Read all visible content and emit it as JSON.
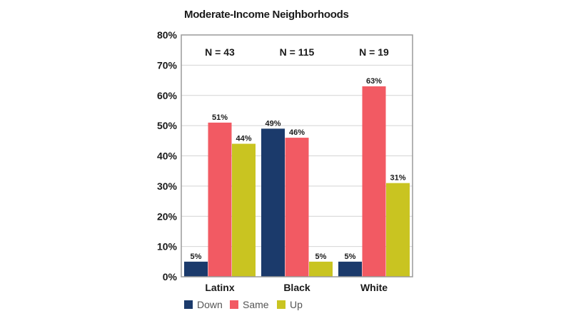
{
  "chart_data": {
    "type": "bar",
    "title": "Moderate-Income Neighborhoods",
    "categories": [
      "Latinx",
      "Black",
      "White"
    ],
    "group_labels": [
      "N = 43",
      "N = 115",
      "N = 19"
    ],
    "series": [
      {
        "name": "Down",
        "values": [
          5,
          49,
          5
        ],
        "labels": [
          "5%",
          "49%",
          "5%"
        ],
        "color": "#1b3a6b"
      },
      {
        "name": "Same",
        "values": [
          51,
          46,
          63
        ],
        "labels": [
          "51%",
          "46%",
          "63%"
        ],
        "color": "#f25a63"
      },
      {
        "name": "Up",
        "values": [
          44,
          5,
          31
        ],
        "labels": [
          "44%",
          "5%",
          "31%"
        ],
        "color": "#c9c421"
      }
    ],
    "ylim": [
      0,
      80
    ],
    "yticks": [
      0,
      10,
      20,
      30,
      40,
      50,
      60,
      70,
      80
    ],
    "ytick_labels": [
      "0%",
      "10%",
      "20%",
      "30%",
      "40%",
      "50%",
      "60%",
      "70%",
      "80%"
    ],
    "grid": true,
    "legend_position": "bottom-left"
  }
}
